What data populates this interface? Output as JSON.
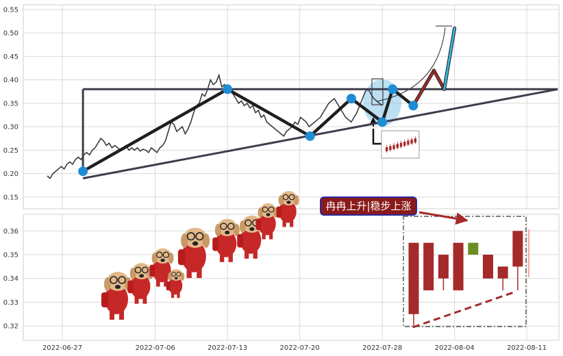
{
  "colors": {
    "frame": "#cfcfcf",
    "grid": "#d9d9d9",
    "price_line": "#3a3a3a",
    "pattern": "#1f1f1f",
    "marker": "#1f8dd6",
    "trend": "#3d3d4a",
    "up_candle": "#a52a2a",
    "down_candle": "#6b8e23",
    "callout_bg": "#8b1a1a",
    "callout_border": "#2a2aa0",
    "arrow": "#a52a2a",
    "cyan": "#35b6e0"
  },
  "icons": [
    "dog-with-backpack-sticker"
  ],
  "callout": {
    "text": "冉冉上升|稳步上涨"
  },
  "chart_data": [
    {
      "type": "line",
      "panel": "top",
      "ylim": [
        0.125,
        0.56
      ],
      "yticks": [
        "0.15",
        "0.20",
        "0.25",
        "0.30",
        "0.35",
        "0.40",
        "0.45",
        "0.50",
        "0.55"
      ],
      "grid": true,
      "series": [
        {
          "values": [
            0.195,
            0.19,
            0.2,
            0.205,
            0.21,
            0.215,
            0.21,
            0.22,
            0.225,
            0.22,
            0.23,
            0.235,
            0.23,
            0.24,
            0.245,
            0.24,
            0.25,
            0.255,
            0.265,
            0.275,
            0.27,
            0.26,
            0.265,
            0.255,
            0.26,
            0.255,
            0.25,
            0.255,
            0.26,
            0.25,
            0.255,
            0.25,
            0.255,
            0.248,
            0.252,
            0.25,
            0.245,
            0.255,
            0.25,
            0.245,
            0.255,
            0.26,
            0.27,
            0.29,
            0.31,
            0.305,
            0.29,
            0.295,
            0.3,
            0.285,
            0.295,
            0.31,
            0.33,
            0.345,
            0.35,
            0.37,
            0.365,
            0.38,
            0.4,
            0.39,
            0.395,
            0.41,
            0.385,
            0.39,
            0.375,
            0.38,
            0.37,
            0.36,
            0.35,
            0.355,
            0.345,
            0.35,
            0.34,
            0.345,
            0.33,
            0.335,
            0.32,
            0.325,
            0.31,
            0.305,
            0.3,
            0.295,
            0.29,
            0.285,
            0.28,
            0.29,
            0.295,
            0.3,
            0.31,
            0.305,
            0.32,
            0.315,
            0.31,
            0.3,
            0.305,
            0.31,
            0.315,
            0.32,
            0.33,
            0.34,
            0.35,
            0.355,
            0.36,
            0.35,
            0.34,
            0.33,
            0.32,
            0.315,
            0.31,
            0.32,
            0.33,
            0.345,
            0.36,
            0.375,
            0.38,
            0.37,
            0.36,
            0.355,
            0.35,
            0.345
          ]
        }
      ],
      "pattern_points": [
        {
          "x": "2022-06-29",
          "y": 0.205
        },
        {
          "x": "2022-07-13",
          "y": 0.38
        },
        {
          "x": "2022-07-21",
          "y": 0.28
        },
        {
          "x": "2022-07-25",
          "y": 0.36
        },
        {
          "x": "2022-07-28",
          "y": 0.31
        },
        {
          "x": "2022-07-29",
          "y": 0.38
        },
        {
          "x": "2022-07-31",
          "y": 0.345
        }
      ],
      "trend_lines": [
        {
          "from": {
            "x": "2022-06-29",
            "y": 0.19
          },
          "to": {
            "x": "2022-08-14",
            "y": 0.38
          }
        },
        {
          "from": {
            "x": "2022-06-29",
            "y": 0.38
          },
          "to": {
            "x": "2022-08-14",
            "y": 0.38
          }
        }
      ],
      "projection": [
        {
          "x": "2022-07-31",
          "y": 0.345
        },
        {
          "x": "2022-08-02",
          "y": 0.42
        },
        {
          "x": "2022-08-03",
          "y": 0.38
        },
        {
          "x": "2022-08-04",
          "y": 0.51
        }
      ]
    },
    {
      "type": "candlestick",
      "panel": "bottom",
      "ylim": [
        0.314,
        0.367
      ],
      "yticks": [
        "0.32",
        "0.33",
        "0.34",
        "0.35",
        "0.36"
      ],
      "xticks": [
        "2022-06-27",
        "2022-07-06",
        "2022-07-13",
        "2022-07-20",
        "2022-07-28",
        "2022-08-04",
        "2022-08-11"
      ],
      "grid": true,
      "candles": [
        {
          "open": 0.325,
          "close": 0.355,
          "high": 0.355,
          "low": 0.32
        },
        {
          "open": 0.335,
          "close": 0.355,
          "high": 0.355,
          "low": 0.335
        },
        {
          "open": 0.34,
          "close": 0.35,
          "high": 0.35,
          "low": 0.335
        },
        {
          "open": 0.335,
          "close": 0.355,
          "high": 0.355,
          "low": 0.335
        },
        {
          "open": 0.355,
          "close": 0.35,
          "high": 0.355,
          "low": 0.35
        },
        {
          "open": 0.34,
          "close": 0.35,
          "high": 0.35,
          "low": 0.34
        },
        {
          "open": 0.34,
          "close": 0.345,
          "high": 0.345,
          "low": 0.335
        },
        {
          "open": 0.345,
          "close": 0.36,
          "high": 0.36,
          "low": 0.335
        }
      ]
    }
  ]
}
